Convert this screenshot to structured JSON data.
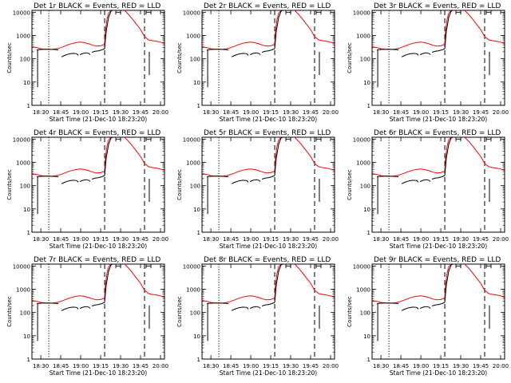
{
  "charts": [
    {
      "title": "Det 1r BLACK = Events, RED = LLD"
    },
    {
      "title": "Det 2r BLACK = Events, RED = LLD"
    },
    {
      "title": "Det 3r BLACK = Events, RED = LLD"
    },
    {
      "title": "Det 4r BLACK = Events, RED = LLD"
    },
    {
      "title": "Det 5r BLACK = Events, RED = LLD"
    },
    {
      "title": "Det 6r BLACK = Events, RED = LLD"
    },
    {
      "title": "Det 7r BLACK = Events, RED = LLD"
    },
    {
      "title": "Det 8r BLACK = Events, RED = LLD"
    },
    {
      "title": "Det 9r BLACK = Events, RED = LLD"
    }
  ],
  "chart_data": {
    "type": "line",
    "xlabel": "Start Time (21-Dec-10 18:23:20)",
    "ylabel": "Counts/sec",
    "xlim": [
      18.3889,
      20.05
    ],
    "ylim": [
      1,
      12000
    ],
    "y_scale": "log",
    "x_ticks": [
      {
        "value": 18.5,
        "label": "18:30"
      },
      {
        "value": 18.75,
        "label": "18:45"
      },
      {
        "value": 19.0,
        "label": "19:00"
      },
      {
        "value": 19.25,
        "label": "19:15"
      },
      {
        "value": 19.5,
        "label": "19:30"
      },
      {
        "value": 19.75,
        "label": "19:45"
      },
      {
        "value": 20.0,
        "label": "20:00"
      }
    ],
    "y_ticks": [
      {
        "value": 1,
        "label": "1"
      },
      {
        "value": 10,
        "label": "10"
      },
      {
        "value": 100,
        "label": "100"
      },
      {
        "value": 1000,
        "label": "1000"
      },
      {
        "value": 10000,
        "label": "10000"
      }
    ],
    "vlines": [
      {
        "x": 18.6,
        "style": "dotted"
      },
      {
        "x": 19.3,
        "style": "dashed"
      },
      {
        "x": 19.8,
        "style": "dashed"
      }
    ],
    "colors": {
      "lld": "#ff0000",
      "events": "#000000"
    },
    "series": [
      {
        "key": "lld",
        "color": "#ff0000",
        "x": [
          18.39,
          18.45,
          18.5,
          18.55,
          18.6,
          18.65,
          18.7,
          18.75,
          18.8,
          18.85,
          18.9,
          18.95,
          19.0,
          19.05,
          19.1,
          19.15,
          19.2,
          19.25,
          19.3,
          19.31,
          19.33,
          19.35,
          19.38,
          19.4,
          19.45,
          19.5,
          19.55,
          19.6,
          19.65,
          19.7,
          19.75,
          19.8,
          19.85,
          19.9,
          19.95,
          20.0,
          20.05
        ],
        "y": [
          330,
          300,
          270,
          255,
          250,
          255,
          270,
          300,
          350,
          410,
          460,
          500,
          520,
          490,
          440,
          380,
          350,
          360,
          420,
          1500,
          5000,
          9000,
          12000,
          14000,
          16000,
          15000,
          12000,
          8000,
          5000,
          3000,
          1800,
          900,
          650,
          600,
          560,
          520,
          450
        ]
      },
      {
        "key": "events",
        "color": "#000000",
        "segments": [
          {
            "x": [
              18.45,
              18.47,
              18.5,
              18.55,
              18.6,
              18.65,
              18.7,
              18.72
            ],
            "y": [
              240,
              245,
              250,
              255,
              255,
              250,
              245,
              240
            ]
          },
          {
            "x": [
              18.46,
              18.46
            ],
            "y": [
              240,
              6
            ]
          },
          {
            "x": [
              18.76,
              18.8,
              18.85,
              18.9,
              18.95,
              18.97
            ],
            "y": [
              120,
              140,
              160,
              170,
              165,
              140
            ]
          },
          {
            "x": [
              18.99,
              19.03,
              19.07,
              19.1,
              19.12
            ],
            "y": [
              150,
              170,
              180,
              170,
              150
            ]
          },
          {
            "x": [
              19.14,
              19.18,
              19.22,
              19.26,
              19.3
            ],
            "y": [
              190,
              210,
              220,
              240,
              270
            ]
          },
          {
            "x": [
              19.3,
              19.32,
              19.35,
              19.38,
              19.42
            ],
            "y": [
              270,
              1500,
              6000,
              11000,
              13000
            ]
          },
          {
            "x": [
              19.86,
              19.86
            ],
            "y": [
              200,
              20
            ]
          }
        ]
      }
    ],
    "annotations": [
      {
        "x": 19.47,
        "y": 10000,
        "marker": "bracket"
      },
      {
        "x": 19.85,
        "y": 10000,
        "marker": "bracket"
      }
    ]
  }
}
